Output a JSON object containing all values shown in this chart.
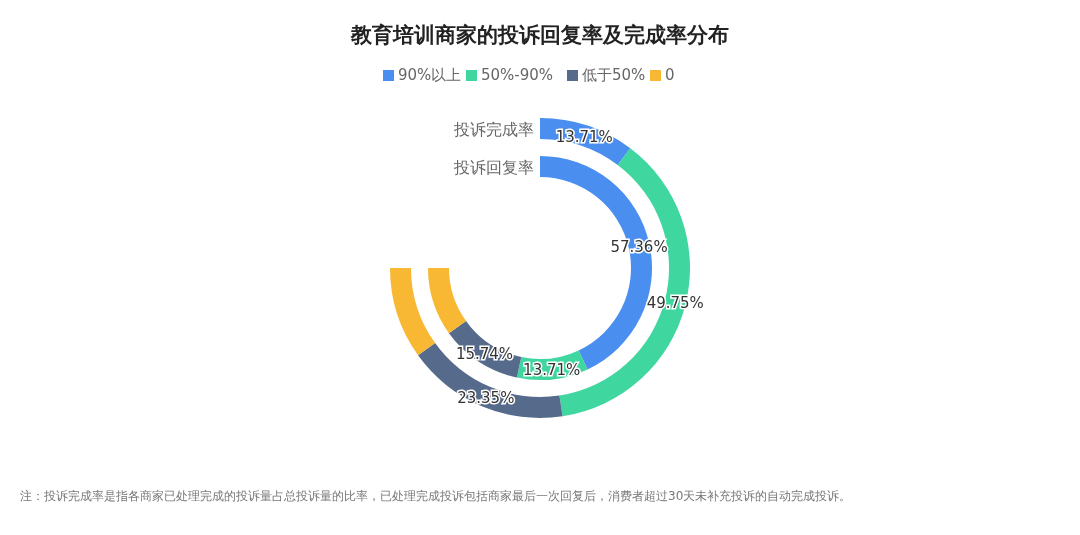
{
  "chart_data": {
    "type": "donut",
    "title": "教育培训商家的投诉回复率及完成率分布",
    "categories": [
      "90%以上",
      "50%-90%",
      "低于50%",
      "0"
    ],
    "colors": [
      "#4a8ff0",
      "#3fd6a0",
      "#566b8c",
      "#f8b833"
    ],
    "series": [
      {
        "name": "投诉完成率",
        "values": [
          13.71,
          49.75,
          23.35,
          13.19
        ],
        "value_labels": [
          "13.71%",
          "49.75%",
          "23.35%",
          null
        ]
      },
      {
        "name": "投诉回复率",
        "values": [
          57.36,
          13.71,
          15.74,
          13.19
        ],
        "value_labels": [
          "57.36%",
          "13.71%",
          "15.74%",
          null
        ]
      }
    ],
    "legend": "top",
    "annotations": [
      "注：投诉完成率是指各商家已处理完成的投诉量占总投诉量的比率，已处理完成投诉包括商家最后一次回复后，消费者超过30天未补充投诉的自动完成投诉。"
    ]
  }
}
